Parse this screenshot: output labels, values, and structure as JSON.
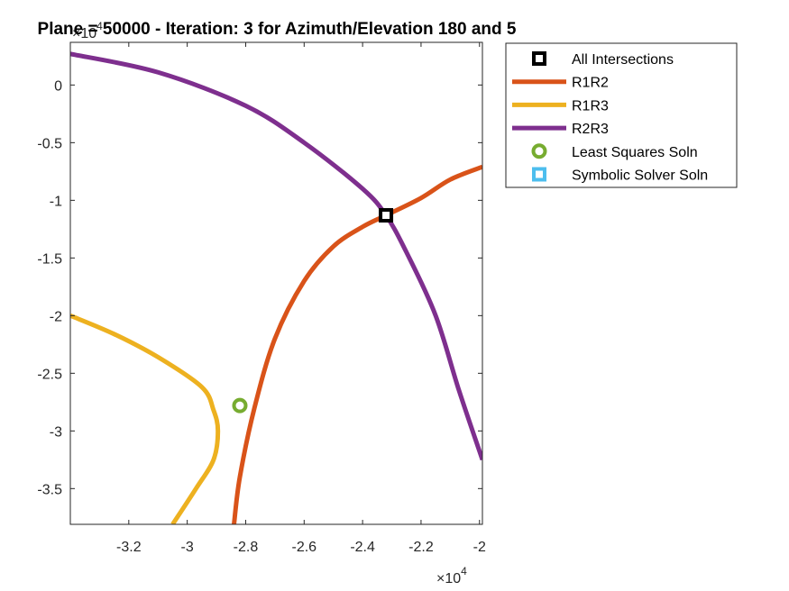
{
  "chart_data": {
    "type": "line",
    "title": "Plane = 50000 - Iteration: 3 for Azimuth/Elevation 180 and 5",
    "xlabel": "",
    "ylabel": "",
    "xlim": [
      -34000,
      -19900
    ],
    "ylim": [
      -38100,
      3700
    ],
    "x_ticks": [
      -32000,
      -30000,
      -28000,
      -26000,
      -24000,
      -22000,
      -20000
    ],
    "x_tick_labels": [
      "-3.2",
      "-3",
      "-2.8",
      "-2.6",
      "-2.4",
      "-2.2",
      "-2"
    ],
    "x_exponent_base": "×10",
    "x_exponent_power": "4",
    "y_ticks": [
      0,
      -5000,
      -10000,
      -15000,
      -20000,
      -25000,
      -30000,
      -35000
    ],
    "y_tick_labels": [
      "0",
      "-0.5",
      "-1",
      "-1.5",
      "-2",
      "-2.5",
      "-3",
      "-3.5"
    ],
    "y_exponent_base": "×10",
    "y_exponent_power": "4",
    "grid": false,
    "legend_position": "outside-top-right",
    "series": [
      {
        "name": "All Intersections",
        "kind": "marker-square",
        "color": "#000000",
        "points": [
          [
            -23200,
            -11300
          ]
        ]
      },
      {
        "name": "R1R2",
        "kind": "line",
        "color": "#D95319",
        "points": [
          [
            -28400,
            -38100
          ],
          [
            -28200,
            -34000
          ],
          [
            -27700,
            -28000
          ],
          [
            -27000,
            -22000
          ],
          [
            -26000,
            -17000
          ],
          [
            -25000,
            -14000
          ],
          [
            -24000,
            -12300
          ],
          [
            -23200,
            -11300
          ],
          [
            -22000,
            -9800
          ],
          [
            -21000,
            -8200
          ],
          [
            -19900,
            -7100
          ]
        ]
      },
      {
        "name": "R1R3",
        "kind": "line",
        "color": "#EDB120",
        "points": [
          [
            -34000,
            -20000
          ],
          [
            -32500,
            -21600
          ],
          [
            -31000,
            -23600
          ],
          [
            -29500,
            -26200
          ],
          [
            -29100,
            -28200
          ],
          [
            -28950,
            -30000
          ],
          [
            -29100,
            -32500
          ],
          [
            -29700,
            -35000
          ],
          [
            -30500,
            -38100
          ]
        ]
      },
      {
        "name": "R2R3",
        "kind": "line",
        "color": "#7E2F8E",
        "points": [
          [
            -34000,
            2700
          ],
          [
            -31000,
            1100
          ],
          [
            -28000,
            -1800
          ],
          [
            -26000,
            -5000
          ],
          [
            -24000,
            -9000
          ],
          [
            -23200,
            -11300
          ],
          [
            -22500,
            -14500
          ],
          [
            -21500,
            -20000
          ],
          [
            -20700,
            -26500
          ],
          [
            -19900,
            -32500
          ]
        ]
      },
      {
        "name": "Least Squares Soln",
        "kind": "marker-circle",
        "color": "#77AC30",
        "points": [
          [
            -28200,
            -27800
          ]
        ]
      },
      {
        "name": "Symbolic Solver Soln",
        "kind": "marker-square",
        "color": "#4DBEEE",
        "points": []
      }
    ]
  }
}
